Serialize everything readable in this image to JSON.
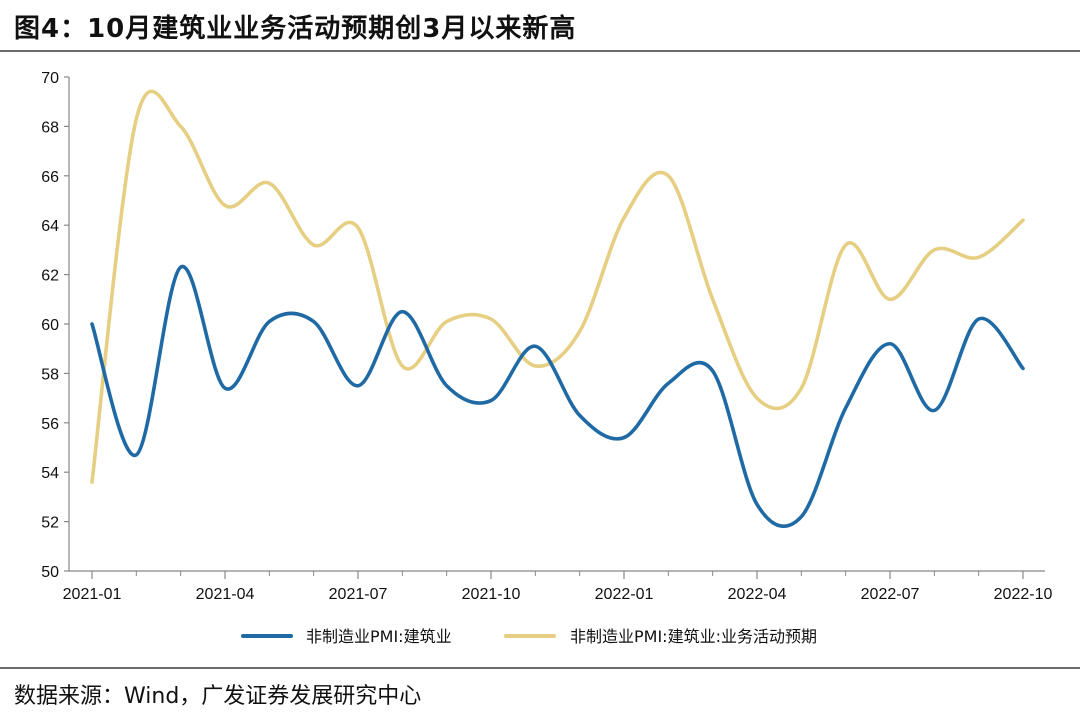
{
  "title": "图4：10月建筑业业务活动预期创3月以来新高",
  "source": "数据来源：Wind，广发证券发展研究中心",
  "chart_data": {
    "type": "line",
    "x": [
      "2021-01",
      "2021-02",
      "2021-03",
      "2021-04",
      "2021-05",
      "2021-06",
      "2021-07",
      "2021-08",
      "2021-09",
      "2021-10",
      "2021-11",
      "2021-12",
      "2022-01",
      "2022-02",
      "2022-03",
      "2022-04",
      "2022-05",
      "2022-06",
      "2022-07",
      "2022-08",
      "2022-09",
      "2022-10"
    ],
    "x_tick_labels": [
      "2021-01",
      "2021-04",
      "2021-07",
      "2021-10",
      "2022-01",
      "2022-04",
      "2022-07",
      "2022-10"
    ],
    "ylim": [
      50,
      70
    ],
    "y_ticks": [
      50,
      52,
      54,
      56,
      58,
      60,
      62,
      64,
      66,
      68,
      70
    ],
    "series": [
      {
        "name": "非制造业PMI:建筑业",
        "color": "#1f6aa5",
        "values": [
          60.0,
          54.7,
          62.3,
          57.4,
          60.1,
          60.1,
          57.5,
          60.5,
          57.5,
          56.9,
          59.1,
          56.3,
          55.4,
          57.6,
          58.1,
          52.7,
          52.2,
          56.6,
          59.2,
          56.5,
          60.2,
          58.2
        ]
      },
      {
        "name": "非制造业PMI:建筑业:业务活动预期",
        "color": "#e6cf82",
        "values": [
          53.6,
          68.3,
          68.0,
          64.8,
          65.7,
          63.2,
          63.9,
          58.3,
          60.1,
          60.2,
          58.3,
          59.7,
          64.3,
          66.0,
          61.0,
          57.0,
          57.4,
          63.2,
          61.0,
          63.0,
          62.7,
          64.2
        ]
      }
    ],
    "xlabel": "",
    "ylabel": "",
    "grid": false,
    "legend": "bottom"
  }
}
